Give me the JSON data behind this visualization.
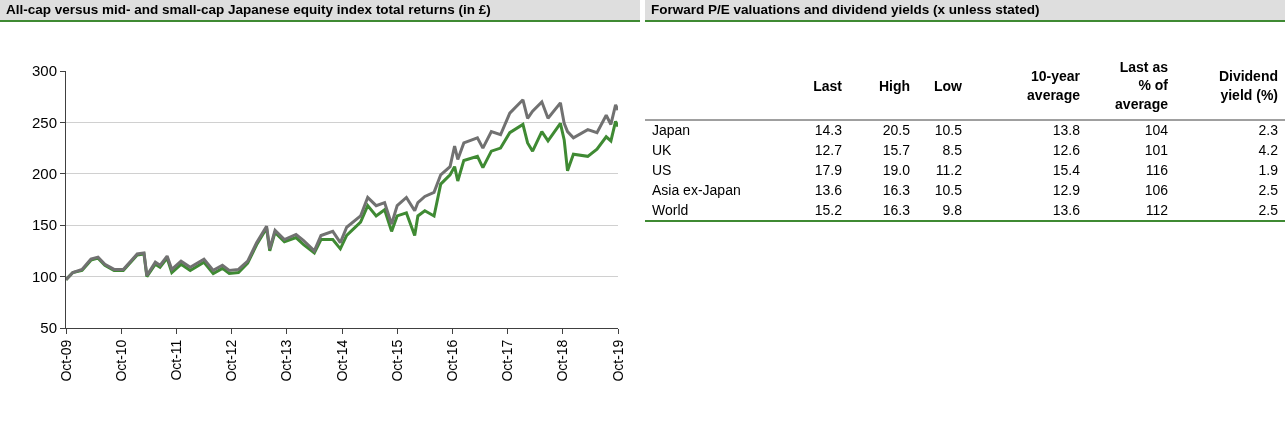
{
  "chart_data": [
    {
      "type": "line",
      "title": "All-cap versus mid- and small-cap Japanese equity index total returns (in £)",
      "x": [
        "2009-10-01",
        "2009-11-15",
        "2010-01-15",
        "2010-03-15",
        "2010-05-01",
        "2010-06-15",
        "2010-08-15",
        "2010-10-15",
        "2011-01-15",
        "2011-03-01",
        "2011-03-20",
        "2011-05-15",
        "2011-06-15",
        "2011-08-01",
        "2011-09-01",
        "2011-11-01",
        "2012-01-01",
        "2012-04-01",
        "2012-06-01",
        "2012-08-01",
        "2012-09-15",
        "2012-11-15",
        "2013-01-15",
        "2013-03-15",
        "2013-05-20",
        "2013-06-10",
        "2013-07-15",
        "2013-09-15",
        "2013-12-01",
        "2014-01-20",
        "2014-04-01",
        "2014-05-15",
        "2014-08-01",
        "2014-09-20",
        "2014-11-01",
        "2015-02-01",
        "2015-03-20",
        "2015-05-15",
        "2015-07-10",
        "2015-08-25",
        "2015-10-01",
        "2015-12-01",
        "2016-01-25",
        "2016-02-15",
        "2016-04-01",
        "2016-06-01",
        "2016-07-15",
        "2016-09-15",
        "2016-10-15",
        "2016-11-05",
        "2016-12-15",
        "2017-03-15",
        "2017-04-20",
        "2017-06-15",
        "2017-08-15",
        "2017-10-15",
        "2018-01-10",
        "2018-02-10",
        "2018-03-15",
        "2018-05-15",
        "2018-06-25",
        "2018-09-15",
        "2018-10-10",
        "2018-11-01",
        "2018-12-10",
        "2019-03-15",
        "2019-05-15",
        "2019-07-15",
        "2019-08-15",
        "2019-09-15",
        "2019-10-01"
      ],
      "series": [
        {
          "color": "#3f8a33",
          "values": [
            97,
            104,
            106,
            116,
            118,
            111,
            106,
            106,
            121,
            122,
            100,
            112,
            109,
            118,
            104,
            112,
            106,
            114,
            103,
            108,
            103,
            104,
            113,
            131,
            147,
            125,
            143,
            134,
            138,
            131,
            123,
            136,
            136,
            127,
            140,
            153,
            169,
            159,
            165,
            144,
            159,
            162,
            140,
            159,
            164,
            159,
            190,
            199,
            207,
            193,
            213,
            217,
            206,
            222,
            225,
            240,
            248,
            230,
            222,
            241,
            232,
            249,
            233,
            203,
            219,
            217,
            224,
            236,
            232,
            251,
            246
          ]
        },
        {
          "color": "#717171",
          "values": [
            97,
            104,
            107,
            117,
            119,
            112,
            107,
            107,
            122,
            123,
            101,
            114,
            111,
            120,
            107,
            115,
            109,
            117,
            106,
            111,
            106,
            107,
            115,
            133,
            149,
            127,
            145,
            136,
            141,
            135,
            125,
            140,
            144,
            133,
            148,
            159,
            177,
            169,
            172,
            151,
            169,
            177,
            164,
            172,
            178,
            182,
            199,
            207,
            227,
            214,
            230,
            235,
            225,
            241,
            238,
            259,
            272,
            254,
            261,
            270,
            254,
            269,
            249,
            241,
            235,
            243,
            240,
            257,
            248,
            267,
            262
          ]
        }
      ],
      "xlim": [
        "2009-10-01",
        "2019-10-01"
      ],
      "xticks": [
        {
          "value": "2009-10-01",
          "label": "Oct-09"
        },
        {
          "value": "2010-10-01",
          "label": "Oct-10"
        },
        {
          "value": "2011-10-01",
          "label": "Oct-11"
        },
        {
          "value": "2012-10-01",
          "label": "Oct-12"
        },
        {
          "value": "2013-10-01",
          "label": "Oct-13"
        },
        {
          "value": "2014-10-01",
          "label": "Oct-14"
        },
        {
          "value": "2015-10-01",
          "label": "Oct-15"
        },
        {
          "value": "2016-10-01",
          "label": "Oct-16"
        },
        {
          "value": "2017-10-01",
          "label": "Oct-17"
        },
        {
          "value": "2018-10-01",
          "label": "Oct-18"
        },
        {
          "value": "2019-10-01",
          "label": "Oct-19"
        }
      ],
      "ylim": [
        50,
        300
      ],
      "yticks": [
        50,
        100,
        150,
        200,
        250,
        300
      ],
      "grid": "y",
      "marker": "none",
      "line_style": "solid"
    },
    {
      "type": "heatmap",
      "title": "Forward P/E valuations and dividend yields (x unless stated)",
      "categories": [
        "Last",
        "High",
        "Low",
        "10-year\naverage",
        "Last as\n% of\naverage",
        "Dividend\nyield (%)"
      ],
      "y_categories": [
        "Japan",
        "UK",
        "US",
        "Asia ex-Japan",
        "World"
      ],
      "cells": [
        [
          14.3,
          20.5,
          10.5,
          13.8,
          104,
          2.3
        ],
        [
          12.7,
          15.7,
          8.5,
          12.6,
          101,
          4.2
        ],
        [
          17.9,
          19.0,
          11.2,
          15.4,
          116,
          1.9
        ],
        [
          13.6,
          16.3,
          10.5,
          12.9,
          106,
          2.5
        ],
        [
          15.2,
          16.3,
          9.8,
          13.6,
          112,
          2.5
        ]
      ],
      "data_labels": true,
      "cell_labels": [
        [
          "14.3",
          "20.5",
          "10.5",
          "13.8",
          "104",
          "2.3"
        ],
        [
          "12.7",
          "15.7",
          "8.5",
          "12.6",
          "101",
          "4.2"
        ],
        [
          "17.9",
          "19.0",
          "11.2",
          "15.4",
          "116",
          "1.9"
        ],
        [
          "13.6",
          "16.3",
          "10.5",
          "12.9",
          "106",
          "2.5"
        ],
        [
          "15.2",
          "16.3",
          "9.8",
          "13.6",
          "112",
          "2.5"
        ]
      ]
    }
  ]
}
